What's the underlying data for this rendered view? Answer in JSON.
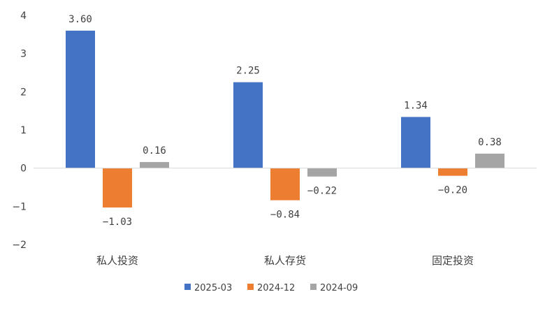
{
  "chart_data": {
    "type": "bar",
    "categories": [
      "私人投资",
      "私人存货",
      "固定投资"
    ],
    "series": [
      {
        "name": "2025-03",
        "values": [
          3.6,
          2.25,
          1.34
        ],
        "labels": [
          "3.60",
          "2.25",
          "1.34"
        ],
        "color": "#4472C4"
      },
      {
        "name": "2024-12",
        "values": [
          -1.03,
          -0.84,
          -0.2
        ],
        "labels": [
          "−1.03",
          "−0.84",
          "−0.20"
        ],
        "color": "#ED7D31"
      },
      {
        "name": "2024-09",
        "values": [
          0.16,
          -0.22,
          0.38
        ],
        "labels": [
          "0.16",
          "−0.22",
          "0.38"
        ],
        "color": "#A5A5A5"
      }
    ],
    "yticks": [
      "4",
      "3",
      "2",
      "1",
      "0",
      "−1",
      "−2"
    ],
    "ylim": [
      -2,
      4
    ],
    "title": "",
    "xlabel": "",
    "ylabel": "",
    "grid": false,
    "legend": "bottom"
  }
}
